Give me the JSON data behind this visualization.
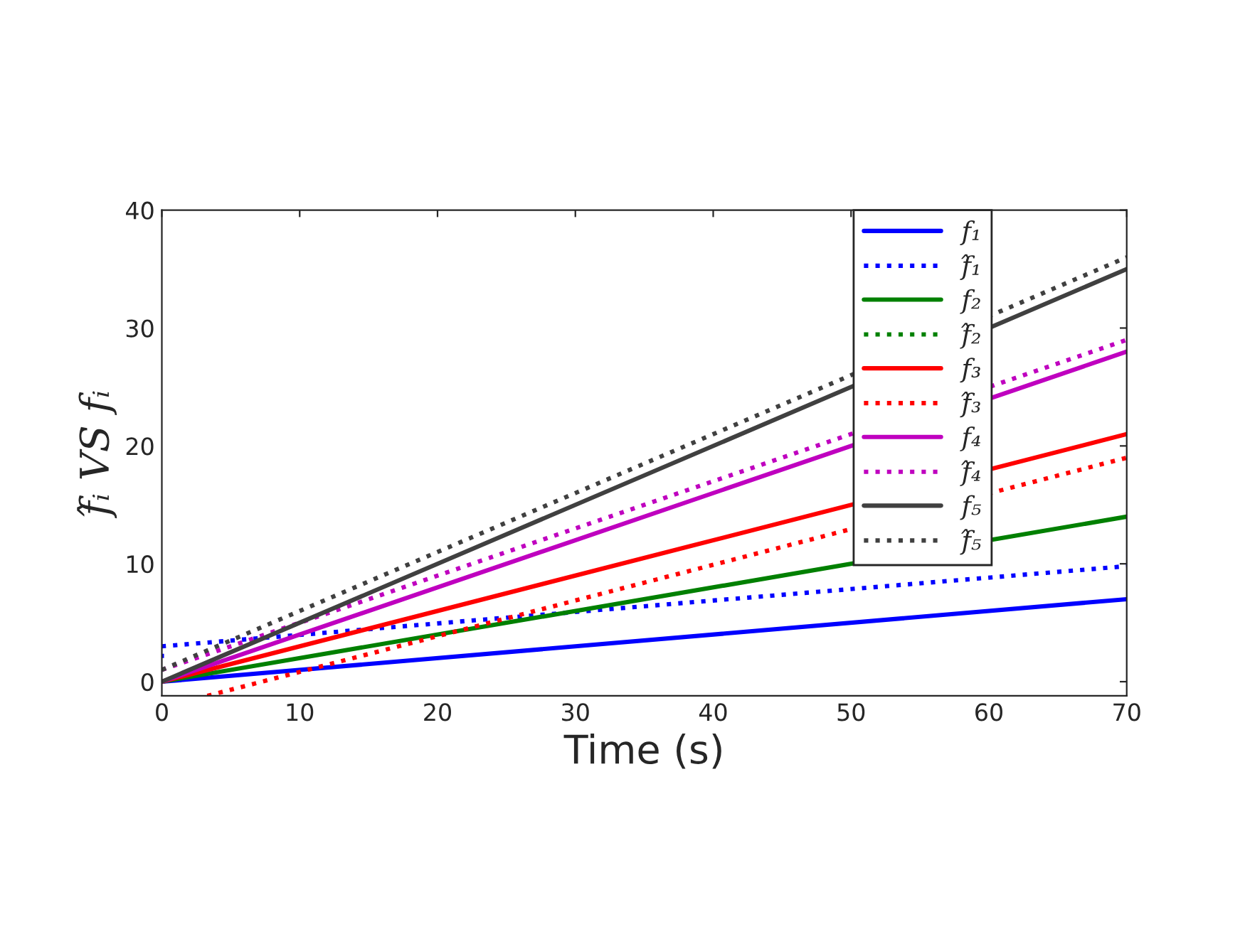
{
  "chart_data": {
    "type": "line",
    "xlabel": "Time (s)",
    "ylabel": "f̂ᵢ VS fᵢ",
    "xlim": [
      0,
      70
    ],
    "ylim": [
      -1.2,
      40
    ],
    "xticks": [
      0,
      10,
      20,
      30,
      40,
      50,
      60,
      70
    ],
    "yticks": [
      0,
      10,
      20,
      30,
      40
    ],
    "grid": false,
    "legend": "top right",
    "series": [
      {
        "name": "f₁",
        "color": "#0000ff",
        "line_style": "solid",
        "x": [
          0,
          70
        ],
        "values": [
          0,
          7
        ]
      },
      {
        "name": "f̂₁",
        "color": "#0000ff",
        "line_style": "dotted",
        "x": [
          0,
          0,
          70
        ],
        "values": [
          2,
          3,
          9.8
        ]
      },
      {
        "name": "f₂",
        "color": "#008000",
        "line_style": "solid",
        "x": [
          0,
          70
        ],
        "values": [
          0,
          14
        ]
      },
      {
        "name": "f̂₂",
        "color": "#008000",
        "line_style": "dotted",
        "values": [
          null,
          null
        ]
      },
      {
        "name": "f₃",
        "color": "#ff0000",
        "line_style": "solid",
        "x": [
          0,
          70
        ],
        "values": [
          0,
          21
        ]
      },
      {
        "name": "f̂₃",
        "color": "#ff0000",
        "line_style": "dotted",
        "x": [
          3.3,
          70
        ],
        "values": [
          -1.2,
          19
        ]
      },
      {
        "name": "f₄",
        "color": "#bf00bf",
        "line_style": "solid",
        "x": [
          0,
          70
        ],
        "values": [
          0,
          28
        ]
      },
      {
        "name": "f̂₄",
        "color": "#bf00bf",
        "line_style": "dotted",
        "x": [
          0,
          70
        ],
        "values": [
          1,
          29
        ]
      },
      {
        "name": "f₅",
        "color": "#404040",
        "line_style": "solid",
        "x": [
          0,
          70
        ],
        "values": [
          0,
          35
        ]
      },
      {
        "name": "f̂₅",
        "color": "#404040",
        "line_style": "dotted",
        "x": [
          0,
          70
        ],
        "values": [
          1,
          36
        ]
      }
    ]
  }
}
